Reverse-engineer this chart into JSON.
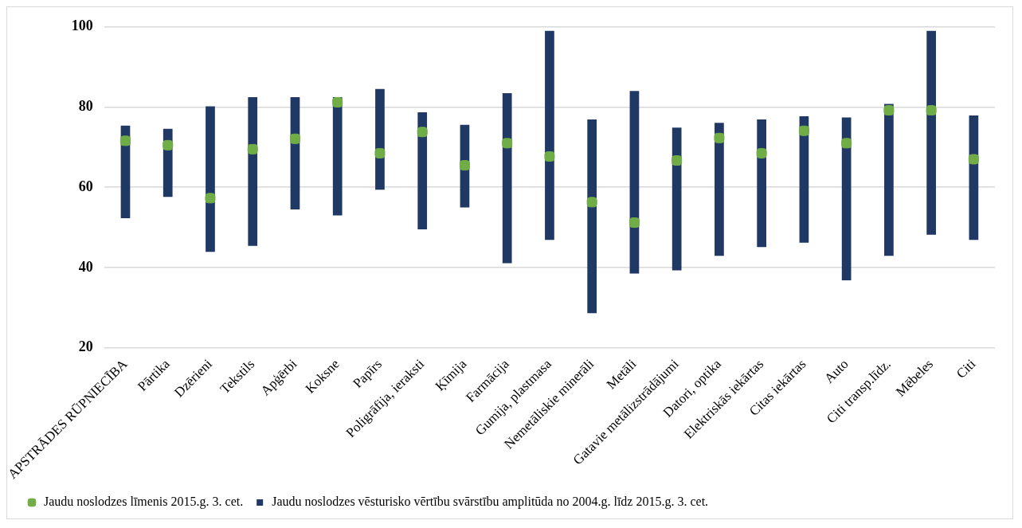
{
  "chart_data": {
    "type": "bar",
    "categories": [
      "APSTRĀDES RŪPNIECĪBA",
      "Pārtika",
      "Dzērieni",
      "Tekstils",
      "Apģērbi",
      "Koksne",
      "Papīrs",
      "Poligrāfija, ieraksti",
      "Ķīmija",
      "Farmācija",
      "Gumija, plastmasa",
      "Nemetāliskie minerāli",
      "Metāli",
      "Gatavie metālizstrādājumi",
      "Datori, optika",
      "Elektriskās iekārtas",
      "Citas iekārtas",
      "Auto",
      "Citi transp.līdz.",
      "Mēbeles",
      "Citi"
    ],
    "series": [
      {
        "name": "Jaudu noslodzes līmenis 2015.g. 3. cet.",
        "type": "scatter",
        "color": "#70ad47",
        "marker": "square",
        "x": [
          "APSTRĀDES RŪPNIECĪBA",
          "Pārtika",
          "Dzērieni",
          "Tekstils",
          "Apģērbi",
          "Koksne",
          "Papīrs",
          "Poligrāfija, ieraksti",
          "Ķīmija",
          "Farmācija",
          "Gumija, plastmasa",
          "Nemetāliskie minerāli",
          "Metāli",
          "Gatavie metālizstrādājumi",
          "Datori, optika",
          "Elektriskās iekārtas",
          "Citas iekārtas",
          "Auto",
          "Citi transp.līdz.",
          "Mēbeles",
          "Citi"
        ],
        "values": [
          71.6,
          70.5,
          57.3,
          69.5,
          72.1,
          81.2,
          68.5,
          73.8,
          65.5,
          71.0,
          67.7,
          56.3,
          51.2,
          66.7,
          72.3,
          68.5,
          74.1,
          71.0,
          79.2,
          79.2,
          67.0
        ]
      },
      {
        "name": "Jaudu noslodzes vēsturisko vērtību svārstību amplitūda no 2004.g. līdz 2015.g. 3. cet.",
        "color": "#1f3864",
        "base": [
          52.3,
          57.6,
          43.9,
          45.4,
          54.5,
          53.0,
          59.4,
          49.5,
          55.0,
          41.1,
          46.9,
          28.6,
          38.5,
          39.3,
          42.9,
          45.1,
          46.2,
          36.8,
          42.9,
          48.2,
          46.9
        ],
        "values": [
          23.1,
          17.0,
          36.3,
          37.1,
          28.0,
          29.5,
          25.1,
          29.2,
          20.6,
          42.4,
          52.1,
          48.3,
          45.5,
          35.6,
          33.2,
          31.8,
          31.5,
          40.6,
          37.9,
          50.8,
          31.0
        ]
      }
    ],
    "ylim": [
      20,
      100
    ],
    "yticks": [
      20,
      40,
      60,
      80,
      100
    ],
    "grid": "y",
    "legend": "bottom"
  }
}
